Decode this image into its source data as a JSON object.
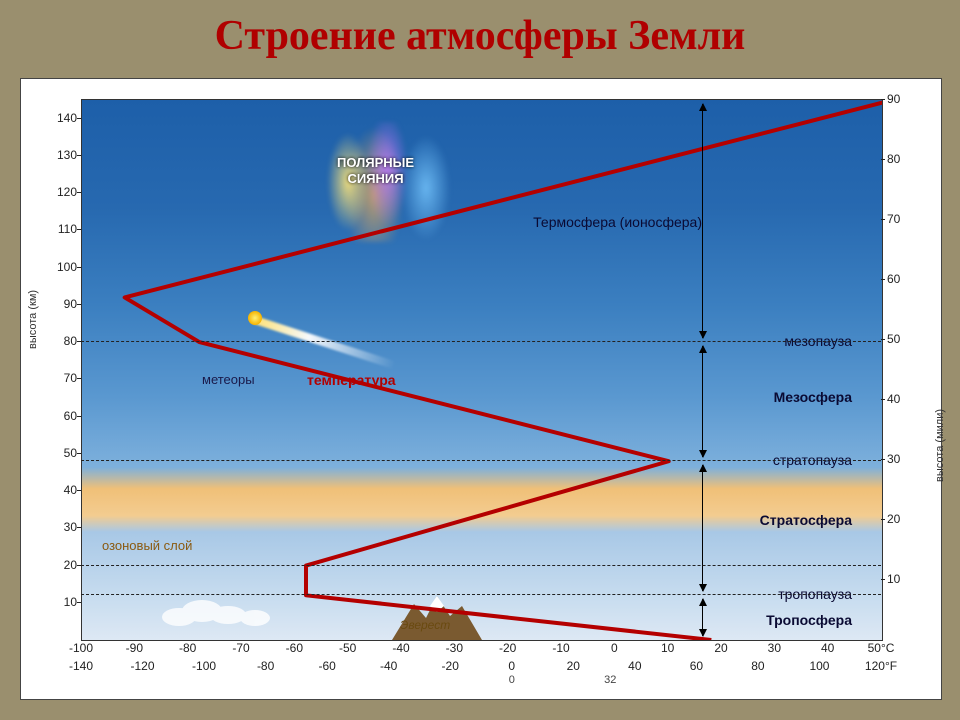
{
  "title": "Строение атмосферы Земли",
  "chart": {
    "type": "line",
    "background_gradient_css": "linear-gradient(to bottom,#1d5fa9 0%,#2769b0 20%,#3b7fc0 38%,#5a98d0 55%,#7db0dc 68%,#f0c078 72%,#f3cc90 77%,#a8c8e6 80%,#c7dcef 92%,#dde8f4 100%)",
    "left_axis": {
      "label": "высота (км)",
      "min": 0,
      "max": 145,
      "tick_step": 10,
      "ticks": [
        10,
        20,
        30,
        40,
        50,
        60,
        70,
        80,
        90,
        100,
        110,
        120,
        130,
        140
      ]
    },
    "right_axis": {
      "label": "высота (мили)",
      "min": 0,
      "max": 90,
      "tick_step": 10,
      "ticks": [
        10,
        20,
        30,
        40,
        50,
        60,
        70,
        80,
        90
      ]
    },
    "x_axis_top": {
      "label_suffix": "°C",
      "ticks": [
        -100,
        -90,
        -80,
        -70,
        -60,
        -50,
        -40,
        -30,
        -20,
        -10,
        0,
        10,
        20,
        30,
        40,
        50
      ]
    },
    "x_axis_bottom": {
      "label_suffix": "°F",
      "ticks": [
        -140,
        -120,
        -100,
        -80,
        -60,
        -40,
        -20,
        0,
        20,
        40,
        60,
        80,
        100,
        120
      ]
    },
    "x_minor_marks": [
      0,
      32
    ],
    "grid_dash_altitudes_km": [
      12,
      20,
      48,
      80
    ],
    "temperature_line": {
      "color": "#b40000",
      "width": 4,
      "points_km_tempC": [
        [
          0,
          18
        ],
        [
          12,
          -58
        ],
        [
          20,
          -58
        ],
        [
          48,
          10
        ],
        [
          80,
          -78
        ],
        [
          92,
          -92
        ],
        [
          145,
          52
        ]
      ]
    },
    "layers": [
      {
        "name": "Тропосфера",
        "alt_km": 5,
        "bold": true
      },
      {
        "name": "тропопауза",
        "alt_km": 12,
        "bold": false
      },
      {
        "name": "Стратосфера",
        "alt_km": 32,
        "bold": true
      },
      {
        "name": "стратопауза",
        "alt_km": 48,
        "bold": false
      },
      {
        "name": "Мезосфера",
        "alt_km": 65,
        "bold": true
      },
      {
        "name": "мезопауза",
        "alt_km": 80,
        "bold": false
      },
      {
        "name": "Термосфера (ионосфера)",
        "alt_km": 112,
        "bold": false
      }
    ],
    "layer_arrows": [
      {
        "from_km": 0,
        "to_km": 12
      },
      {
        "from_km": 12,
        "to_km": 48
      },
      {
        "from_km": 48,
        "to_km": 80
      },
      {
        "from_km": 80,
        "to_km": 145
      }
    ],
    "features": {
      "aurora_label": "ПОЛЯРНЫЕ\nСИЯНИЯ",
      "meteor_label": "метеоры",
      "temperature_label": "температура",
      "ozone_label": "озоновый слой",
      "everest_label": "Эверест"
    },
    "colors": {
      "title": "#b00000",
      "temp_line": "#b40000",
      "grid_dash": "#222222",
      "ozone_band": "#f0c078",
      "text_dark": "#0a0a33"
    },
    "fontsizes": {
      "title": 42,
      "layer": 14,
      "tick": 12,
      "feature": 13
    }
  }
}
